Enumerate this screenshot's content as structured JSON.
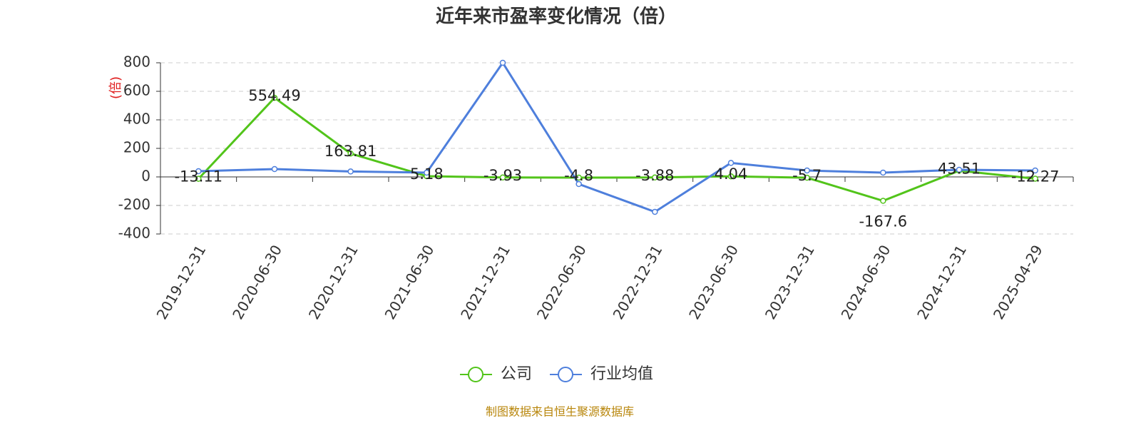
{
  "chart_data": {
    "type": "line",
    "title": "近年来市盈率变化情况（倍）",
    "y_label": "(倍)",
    "footer": "制图数据来自恒生聚源数据库",
    "categories": [
      "2019-12-31",
      "2020-06-30",
      "2020-12-31",
      "2021-06-30",
      "2021-12-31",
      "2022-06-30",
      "2022-12-31",
      "2023-06-30",
      "2023-12-31",
      "2024-06-30",
      "2024-12-31",
      "2025-04-29"
    ],
    "series": [
      {
        "name": "公司",
        "color": "#52c41a",
        "values": [
          -13.11,
          554.49,
          163.81,
          5.18,
          -3.93,
          -4.8,
          -3.88,
          4.04,
          -5.7,
          -167.6,
          43.51,
          -12.27
        ],
        "show_labels": true
      },
      {
        "name": "行业均值",
        "color": "#4e7fdc",
        "values": [
          40,
          55,
          38,
          30,
          800,
          -50,
          -245,
          98,
          45,
          30,
          50,
          45
        ],
        "show_labels": false
      }
    ],
    "ylim": [
      -400,
      800
    ],
    "yticks": [
      -400,
      -200,
      0,
      200,
      400,
      600,
      800
    ],
    "grid": true
  }
}
